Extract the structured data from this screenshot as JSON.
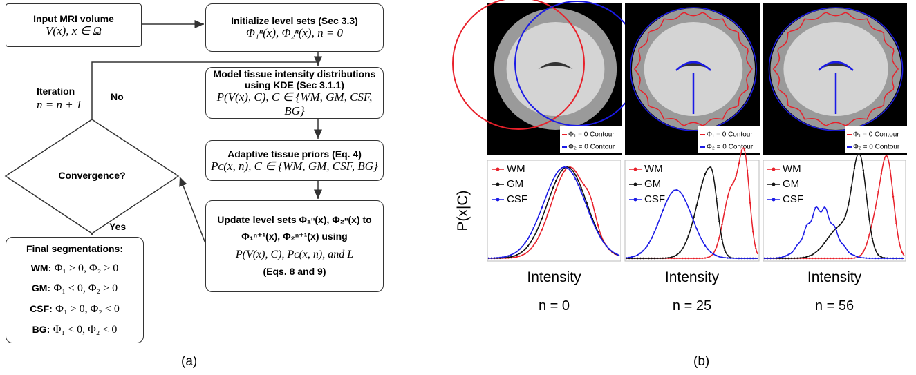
{
  "panel_a": {
    "label": "(a)",
    "input": {
      "title": "Input MRI volume",
      "formula": "V(x), x ∈ Ω"
    },
    "init": {
      "title": "Initialize level sets (Sec 3.3)",
      "formula": "Φ₁ⁿ(x), Φ₂ⁿ(x), n = 0"
    },
    "model": {
      "title": "Model tissue intensity distributions using KDE (Sec  3.1.1)",
      "formula": "P(V(x), C), C ∈ {WM, GM, CSF, BG}"
    },
    "priors": {
      "title": "Adaptive tissue priors (Eq. 4)",
      "formula": "Pᴄ(x, n), C ∈ {WM, GM, CSF, BG}"
    },
    "update": {
      "lines": [
        "Update level sets Φ₁ⁿ(x), Φ₂ⁿ(x) to",
        "Φ₁ⁿ⁺¹(x), Φ₂ⁿ⁺¹(x) using",
        "P(V(x), C), Pᴄ(x, n), and L",
        "(Eqs. 8 and 9)"
      ]
    },
    "decision": "Convergence?",
    "iteration": {
      "label": "Iteration",
      "formula": "n = n + 1"
    },
    "no": "No",
    "yes": "Yes",
    "final": {
      "title": "Final segmentations:",
      "rows": [
        {
          "class": "WM:",
          "rule": "Φ₁ > 0, Φ₂ > 0"
        },
        {
          "class": "GM:",
          "rule": "Φ₁ < 0, Φ₂ > 0"
        },
        {
          "class": "CSF:",
          "rule": "Φ₁ > 0, Φ₂ < 0"
        },
        {
          "class": "BG:",
          "rule": "Φ₁ < 0, Φ₂ < 0"
        }
      ]
    }
  },
  "panel_b": {
    "label": "(b)",
    "y_label": "P(x|C)",
    "columns": [
      {
        "contours": [
          "Φ₁ = 0 Contour",
          "Φ₂ = 0 Contour"
        ],
        "classes": [
          "WM",
          "GM",
          "CSF"
        ],
        "x_label": "Intensity",
        "caption": "n = 0"
      },
      {
        "contours": [
          "Φ₁ = 0 Contour",
          "Φ₂ = 0 Contour"
        ],
        "classes": [
          "WM",
          "GM",
          "CSF"
        ],
        "x_label": "Intensity",
        "caption": "n = 25"
      },
      {
        "contours": [
          "Φ₁ = 0 Contour",
          "Φ₂ = 0 Contour"
        ],
        "classes": [
          "WM",
          "GM",
          "CSF"
        ],
        "x_label": "Intensity",
        "caption": "n = 56"
      }
    ]
  }
}
